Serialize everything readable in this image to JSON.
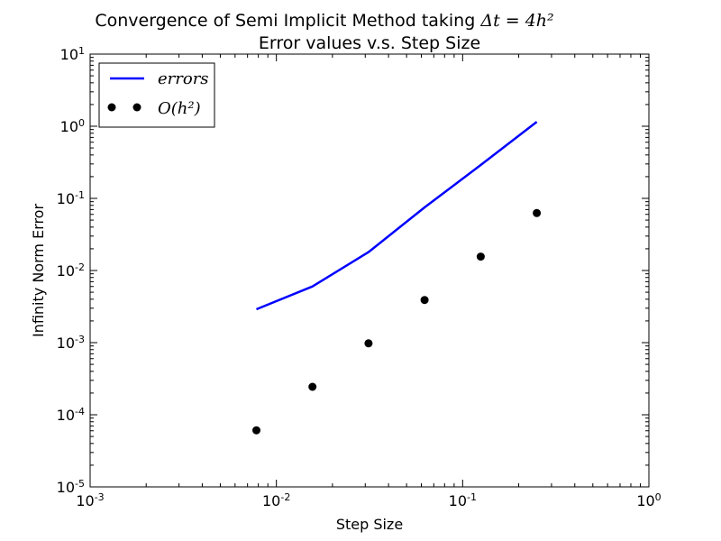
{
  "chart_data": {
    "type": "line",
    "title": {
      "line1": "Convergence of Semi Implicit Method taking ",
      "line1_math": "Δt = 4h²",
      "line2": "Error values v.s. Step Size"
    },
    "xlabel": "Step Size",
    "ylabel": "Infinity Norm Error",
    "xscale": "log",
    "yscale": "log",
    "xlim": [
      0.001,
      1
    ],
    "ylim": [
      1e-05,
      10
    ],
    "xticks": [
      {
        "value": 0.001,
        "base": "10",
        "exp": "-3"
      },
      {
        "value": 0.01,
        "base": "10",
        "exp": "-2"
      },
      {
        "value": 0.1,
        "base": "10",
        "exp": "-1"
      },
      {
        "value": 1,
        "base": "10",
        "exp": "0"
      }
    ],
    "yticks": [
      {
        "value": 1e-05,
        "base": "10",
        "exp": "-5"
      },
      {
        "value": 0.0001,
        "base": "10",
        "exp": "-4"
      },
      {
        "value": 0.001,
        "base": "10",
        "exp": "-3"
      },
      {
        "value": 0.01,
        "base": "10",
        "exp": "-2"
      },
      {
        "value": 0.1,
        "base": "10",
        "exp": "-1"
      },
      {
        "value": 1,
        "base": "10",
        "exp": "0"
      },
      {
        "value": 10,
        "base": "10",
        "exp": "1"
      }
    ],
    "legend_position": "top-left",
    "grid": false,
    "series": [
      {
        "name": "errors",
        "style": "line",
        "color": "#0000ff",
        "x": [
          0.0078125,
          0.015625,
          0.03125,
          0.0625,
          0.125,
          0.25
        ],
        "y": [
          0.0029,
          0.006,
          0.018,
          0.075,
          0.29,
          1.15
        ]
      },
      {
        "name": "O(h²)",
        "style": "points",
        "color": "#000000",
        "x": [
          0.0078125,
          0.015625,
          0.03125,
          0.0625,
          0.125,
          0.25
        ],
        "y": [
          6.1e-05,
          0.000244,
          0.000977,
          0.0039,
          0.0156,
          0.0625
        ]
      }
    ]
  }
}
